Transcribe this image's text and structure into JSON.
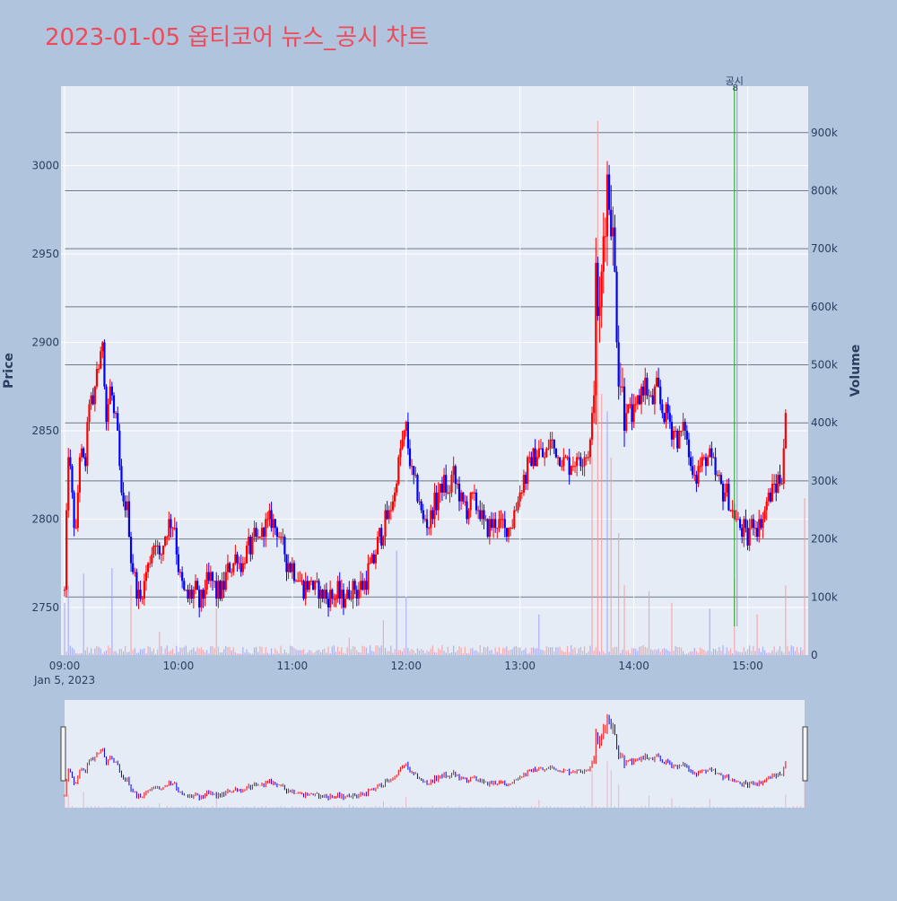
{
  "title": "2023-01-05 옵티코어 뉴스_공시 차트",
  "colors": {
    "paper": "#b0c4de",
    "plot_bg": "#e5ecf6",
    "up": "#ff0000",
    "down": "#0000ff",
    "title": "#ef4a5a",
    "annotation": "#2ca02c",
    "axis_text": "#2a3f5f"
  },
  "chart_data": {
    "type": "candlestick",
    "title": "2023-01-05 옵티코어 뉴스_공시 차트",
    "ylabel": "Price",
    "y2label": "Volume",
    "date_label": "Jan 5, 2023",
    "x_ticks": [
      "09:00",
      "10:00",
      "11:00",
      "12:00",
      "13:00",
      "14:00",
      "15:00"
    ],
    "x_range": [
      "09:00",
      "15:30"
    ],
    "y_ticks": [
      2750,
      2800,
      2850,
      2900,
      2950,
      3000
    ],
    "y_range": [
      2723,
      3045
    ],
    "y2_ticks": [
      0,
      100000,
      200000,
      300000,
      400000,
      500000,
      600000,
      700000,
      800000,
      900000
    ],
    "y2_tick_labels": [
      "0",
      "100k",
      "200k",
      "300k",
      "400k",
      "500k",
      "600k",
      "700k",
      "800k",
      "900k"
    ],
    "y2_range": [
      0,
      980000
    ],
    "annotation": {
      "time": "14:53",
      "label": "공시",
      "count": "8"
    },
    "price_path": [
      [
        "09:00",
        2760
      ],
      [
        "09:02",
        2840
      ],
      [
        "09:04",
        2810
      ],
      [
        "09:06",
        2790
      ],
      [
        "09:08",
        2840
      ],
      [
        "09:11",
        2830
      ],
      [
        "09:13",
        2870
      ],
      [
        "09:15",
        2860
      ],
      [
        "09:17",
        2885
      ],
      [
        "09:19",
        2890
      ],
      [
        "09:20",
        2905
      ],
      [
        "09:22",
        2855
      ],
      [
        "09:24",
        2875
      ],
      [
        "09:26",
        2860
      ],
      [
        "09:28",
        2845
      ],
      [
        "09:30",
        2810
      ],
      [
        "09:33",
        2805
      ],
      [
        "09:35",
        2780
      ],
      [
        "09:38",
        2760
      ],
      [
        "09:40",
        2755
      ],
      [
        "09:42",
        2765
      ],
      [
        "09:45",
        2780
      ],
      [
        "09:48",
        2790
      ],
      [
        "09:50",
        2775
      ],
      [
        "09:53",
        2790
      ],
      [
        "09:56",
        2800
      ],
      [
        "09:58",
        2795
      ],
      [
        "10:00",
        2775
      ],
      [
        "10:02",
        2760
      ],
      [
        "10:05",
        2755
      ],
      [
        "10:08",
        2760
      ],
      [
        "10:11",
        2752
      ],
      [
        "10:14",
        2760
      ],
      [
        "10:17",
        2765
      ],
      [
        "10:20",
        2760
      ],
      [
        "10:23",
        2760
      ],
      [
        "10:26",
        2770
      ],
      [
        "10:30",
        2780
      ],
      [
        "10:34",
        2775
      ],
      [
        "10:38",
        2785
      ],
      [
        "10:42",
        2790
      ],
      [
        "10:46",
        2795
      ],
      [
        "10:50",
        2800
      ],
      [
        "10:54",
        2785
      ],
      [
        "10:58",
        2775
      ],
      [
        "11:02",
        2770
      ],
      [
        "11:06",
        2760
      ],
      [
        "11:10",
        2765
      ],
      [
        "11:14",
        2758
      ],
      [
        "11:18",
        2757
      ],
      [
        "11:22",
        2758
      ],
      [
        "11:26",
        2756
      ],
      [
        "11:30",
        2758
      ],
      [
        "11:34",
        2760
      ],
      [
        "11:38",
        2765
      ],
      [
        "11:42",
        2775
      ],
      [
        "11:46",
        2790
      ],
      [
        "11:50",
        2800
      ],
      [
        "11:54",
        2815
      ],
      [
        "11:57",
        2840
      ],
      [
        "12:00",
        2850
      ],
      [
        "12:03",
        2825
      ],
      [
        "12:06",
        2815
      ],
      [
        "12:09",
        2800
      ],
      [
        "12:12",
        2795
      ],
      [
        "12:15",
        2808
      ],
      [
        "12:19",
        2820
      ],
      [
        "12:22",
        2815
      ],
      [
        "12:25",
        2825
      ],
      [
        "12:28",
        2812
      ],
      [
        "12:32",
        2805
      ],
      [
        "12:36",
        2810
      ],
      [
        "12:40",
        2800
      ],
      [
        "12:44",
        2795
      ],
      [
        "12:48",
        2800
      ],
      [
        "12:52",
        2795
      ],
      [
        "12:56",
        2800
      ],
      [
        "13:00",
        2815
      ],
      [
        "13:03",
        2825
      ],
      [
        "13:06",
        2835
      ],
      [
        "13:10",
        2840
      ],
      [
        "13:13",
        2835
      ],
      [
        "13:16",
        2845
      ],
      [
        "13:20",
        2835
      ],
      [
        "13:24",
        2832
      ],
      [
        "13:28",
        2830
      ],
      [
        "13:32",
        2835
      ],
      [
        "13:36",
        2840
      ],
      [
        "13:38",
        2845
      ],
      [
        "13:40",
        2930
      ],
      [
        "13:42",
        2910
      ],
      [
        "13:44",
        2960
      ],
      [
        "13:46",
        2990
      ],
      [
        "13:48",
        2975
      ],
      [
        "13:50",
        2935
      ],
      [
        "13:52",
        2890
      ],
      [
        "13:54",
        2870
      ],
      [
        "13:57",
        2862
      ],
      [
        "14:00",
        2858
      ],
      [
        "14:03",
        2870
      ],
      [
        "14:06",
        2878
      ],
      [
        "14:09",
        2865
      ],
      [
        "14:12",
        2875
      ],
      [
        "14:15",
        2860
      ],
      [
        "14:18",
        2858
      ],
      [
        "14:21",
        2850
      ],
      [
        "14:24",
        2845
      ],
      [
        "14:27",
        2852
      ],
      [
        "14:30",
        2830
      ],
      [
        "14:33",
        2825
      ],
      [
        "14:36",
        2832
      ],
      [
        "14:39",
        2835
      ],
      [
        "14:42",
        2828
      ],
      [
        "14:45",
        2822
      ],
      [
        "14:48",
        2815
      ],
      [
        "14:51",
        2808
      ],
      [
        "14:54",
        2800
      ],
      [
        "14:57",
        2795
      ],
      [
        "15:00",
        2790
      ],
      [
        "15:03",
        2800
      ],
      [
        "15:06",
        2795
      ],
      [
        "15:09",
        2805
      ],
      [
        "15:12",
        2815
      ],
      [
        "15:15",
        2820
      ],
      [
        "15:18",
        2825
      ],
      [
        "15:20",
        2855
      ]
    ],
    "volume_spikes": [
      [
        "09:00",
        90000
      ],
      [
        "09:02",
        120000
      ],
      [
        "09:10",
        140000
      ],
      [
        "09:25",
        150000
      ],
      [
        "09:35",
        120000
      ],
      [
        "09:50",
        40000
      ],
      [
        "10:20",
        80000
      ],
      [
        "11:30",
        30000
      ],
      [
        "11:48",
        60000
      ],
      [
        "11:55",
        180000
      ],
      [
        "12:00",
        100000
      ],
      [
        "13:10",
        70000
      ],
      [
        "13:38",
        340000
      ],
      [
        "13:41",
        920000
      ],
      [
        "13:43",
        450000
      ],
      [
        "13:46",
        420000
      ],
      [
        "13:48",
        340000
      ],
      [
        "13:52",
        210000
      ],
      [
        "13:55",
        120000
      ],
      [
        "14:08",
        110000
      ],
      [
        "14:20",
        90000
      ],
      [
        "14:40",
        80000
      ],
      [
        "14:53",
        130000
      ],
      [
        "15:05",
        70000
      ],
      [
        "15:20",
        120000
      ],
      [
        "15:30",
        270000
      ]
    ]
  }
}
